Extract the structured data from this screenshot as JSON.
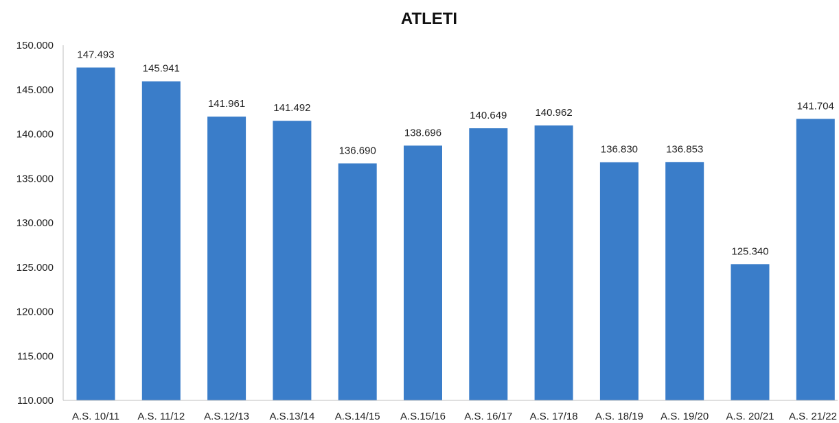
{
  "chart_data": {
    "type": "bar",
    "title": "ATLETI",
    "xlabel": "",
    "ylabel": "",
    "categories": [
      "A.S. 10/11",
      "A.S. 11/12",
      "A.S.12/13",
      "A.S.13/14",
      "A.S.14/15",
      "A.S.15/16",
      "A.S. 16/17",
      "A.S. 17/18",
      "A.S. 18/19",
      "A.S. 19/20",
      "A.S. 20/21",
      "A.S. 21/22"
    ],
    "values": [
      147493,
      145941,
      141961,
      141492,
      136690,
      138696,
      140649,
      140962,
      136830,
      136853,
      125340,
      141704
    ],
    "value_labels": [
      "147.493",
      "145.941",
      "141.961",
      "141.492",
      "136.690",
      "138.696",
      "140.649",
      "140.962",
      "136.830",
      "136.853",
      "125.340",
      "141.704"
    ],
    "ylim": [
      110000,
      150000
    ],
    "yticks": [
      110000,
      115000,
      120000,
      125000,
      130000,
      135000,
      140000,
      145000,
      150000
    ],
    "ytick_labels": [
      "110.000",
      "115.000",
      "120.000",
      "125.000",
      "130.000",
      "135.000",
      "140.000",
      "145.000",
      "150.000"
    ],
    "grid": false,
    "legend": "none",
    "bar_color": "#3a7dc9"
  }
}
